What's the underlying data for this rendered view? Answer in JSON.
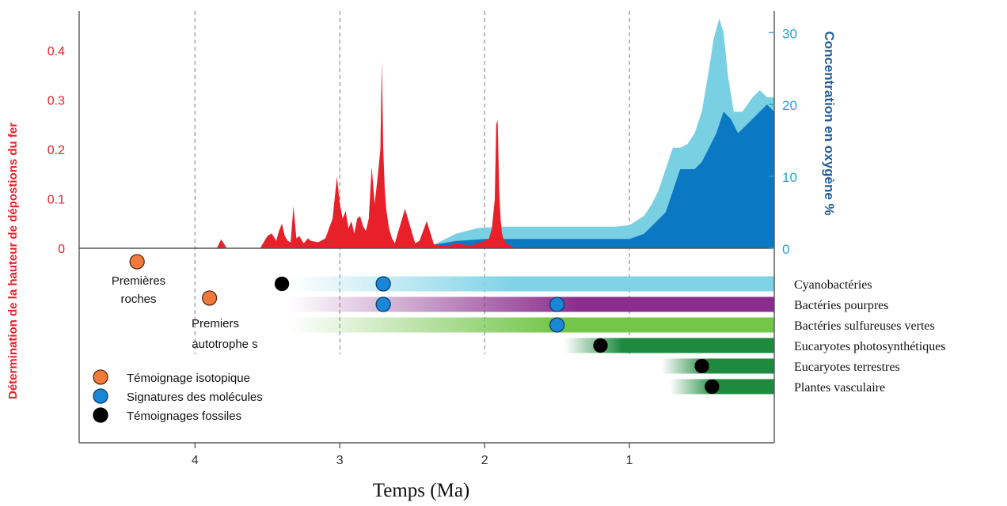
{
  "chart_data": {
    "type": "area",
    "xlabel": "Temps (Ma)",
    "ylabel_left": "Détermination de la hauteur de dépostions du fer",
    "ylabel_right": "Concentration en oxygène %",
    "xlim": [
      4.8,
      0
    ],
    "x_ticks": [
      "4",
      "3",
      "2",
      "1"
    ],
    "x_tick_values": [
      4,
      3,
      2,
      1
    ],
    "vgrid_dashed_at": [
      4,
      3,
      2,
      1
    ],
    "left_axis": {
      "ylim": [
        0,
        0.48
      ],
      "ticks": [
        "0",
        "0.1",
        "0.2",
        "0.3",
        "0.4"
      ],
      "tick_values": [
        0,
        0.1,
        0.2,
        0.3,
        0.4
      ],
      "color": "#e8202a"
    },
    "right_axis": {
      "ylim": [
        0,
        33
      ],
      "ticks": [
        "0",
        "10",
        "20",
        "30"
      ],
      "tick_values": [
        0,
        10,
        20,
        30
      ],
      "color": "#2a9fd6"
    },
    "series": [
      {
        "axis": "left",
        "color": "#e8202a",
        "x": [
          4.8,
          3.85,
          3.82,
          3.78,
          3.55,
          3.5,
          3.47,
          3.44,
          3.42,
          3.4,
          3.38,
          3.36,
          3.34,
          3.32,
          3.3,
          3.28,
          3.25,
          3.22,
          3.2,
          3.15,
          3.1,
          3.05,
          3.02,
          3.0,
          2.98,
          2.96,
          2.94,
          2.92,
          2.9,
          2.88,
          2.86,
          2.84,
          2.82,
          2.8,
          2.78,
          2.76,
          2.74,
          2.72,
          2.71,
          2.7,
          2.69,
          2.68,
          2.66,
          2.64,
          2.62,
          2.6,
          2.55,
          2.5,
          2.48,
          2.45,
          2.4,
          2.35,
          2.3,
          2.25,
          2.2,
          2.15,
          2.1,
          2.05,
          2.0,
          1.97,
          1.95,
          1.93,
          1.92,
          1.91,
          1.9,
          1.89,
          1.88,
          1.87,
          1.85,
          1.82,
          1.78,
          0
        ],
        "y": [
          0,
          0,
          0.018,
          0,
          0,
          0.025,
          0.03,
          0.015,
          0.035,
          0.05,
          0.025,
          0.015,
          0.012,
          0.085,
          0.02,
          0.025,
          0.01,
          0.02,
          0.015,
          0.012,
          0.02,
          0.06,
          0.145,
          0.09,
          0.06,
          0.075,
          0.04,
          0.055,
          0.03,
          0.06,
          0.065,
          0.045,
          0.035,
          0.06,
          0.165,
          0.09,
          0.14,
          0.2,
          0.38,
          0.2,
          0.12,
          0.08,
          0.04,
          0.02,
          0.01,
          0.03,
          0.08,
          0.03,
          0.01,
          0.015,
          0.055,
          0.008,
          0.005,
          0.005,
          0.01,
          0.008,
          0.005,
          0.01,
          0.015,
          0.02,
          0.04,
          0.1,
          0.25,
          0.26,
          0.12,
          0.06,
          0.03,
          0.02,
          0.01,
          0.005,
          0,
          0
        ]
      },
      {
        "axis": "right",
        "color": "#79d0e3",
        "x": [
          4.8,
          2.5,
          2.35,
          2.2,
          2.05,
          1.9,
          1.7,
          1.5,
          1.3,
          1.1,
          1.0,
          0.9,
          0.85,
          0.8,
          0.75,
          0.7,
          0.65,
          0.6,
          0.55,
          0.5,
          0.45,
          0.42,
          0.38,
          0.35,
          0.32,
          0.28,
          0.22,
          0.15,
          0.1,
          0.05,
          0
        ],
        "y": [
          0,
          0,
          0.5,
          2,
          2.8,
          3,
          3,
          3,
          3,
          3,
          3.2,
          4.5,
          6,
          8,
          11,
          14,
          14,
          14.5,
          16,
          19,
          25,
          29,
          32,
          30,
          24,
          19,
          19,
          21,
          22,
          21,
          21
        ]
      },
      {
        "axis": "right",
        "color": "#0b78c3",
        "x": [
          4.8,
          2.5,
          2.35,
          2.2,
          2.0,
          1.8,
          1.6,
          1.4,
          1.2,
          1.0,
          0.9,
          0.85,
          0.8,
          0.75,
          0.7,
          0.65,
          0.6,
          0.55,
          0.5,
          0.45,
          0.4,
          0.35,
          0.3,
          0.25,
          0.2,
          0.15,
          0.1,
          0.05,
          0
        ],
        "y": [
          0,
          0,
          0.5,
          1,
          1.3,
          1.3,
          1.3,
          1.3,
          1.3,
          1.3,
          2,
          3,
          4,
          5,
          8,
          11,
          11,
          11,
          12,
          14,
          16,
          19,
          18,
          16,
          17,
          18,
          19,
          20,
          19
        ]
      }
    ],
    "lineages": [
      {
        "label": "Cyanobactéries",
        "color": "#7fd3e6",
        "fade_start": 3.35,
        "solid_from": 1.8,
        "markers": [
          {
            "x": 3.4,
            "kind": "fossil"
          },
          {
            "x": 2.7,
            "kind": "molecular"
          }
        ]
      },
      {
        "label": "Bactéries pourpres",
        "color": "#8a2d8c",
        "fade_start": 3.35,
        "solid_from": 1.35,
        "markers": [
          {
            "x": 2.7,
            "kind": "molecular"
          },
          {
            "x": 1.5,
            "kind": "molecular"
          }
        ]
      },
      {
        "label": "Bactéries sulfureuses vertes",
        "color": "#72c64a",
        "fade_start": 3.35,
        "solid_from": 1.5,
        "markers": [
          {
            "x": 1.5,
            "kind": "molecular"
          }
        ]
      },
      {
        "label": "Eucaryotes photosynthétiques",
        "color": "#1d8a3d",
        "fade_start": 1.45,
        "solid_from": 1.05,
        "markers": [
          {
            "x": 1.2,
            "kind": "fossil"
          }
        ]
      },
      {
        "label": "Eucaryotes terrestres",
        "color": "#1d8a3d",
        "fade_start": 0.78,
        "solid_from": 0.45,
        "markers": [
          {
            "x": 0.5,
            "kind": "fossil"
          }
        ]
      },
      {
        "label": "Plantes vasculaire",
        "color": "#1d8a3d",
        "fade_start": 0.72,
        "solid_from": 0.4,
        "markers": [
          {
            "x": 0.43,
            "kind": "fossil"
          }
        ]
      }
    ],
    "isotopic_points": [
      {
        "x": 4.4,
        "label": "Premières roches"
      },
      {
        "x": 3.9,
        "label": "Premiers autotrophe s"
      }
    ],
    "first_rocks_label_lines": [
      "Premières",
      "roches"
    ],
    "first_autotrophs_label_lines": [
      "Premiers",
      "autotrophe s"
    ],
    "marker_colors": {
      "isotopic": "#f07a3a",
      "molecular": "#1a86d6",
      "fossil": "#000000"
    },
    "legend": {
      "placement": "bottom-left",
      "entries": [
        {
          "kind": "isotopic",
          "label": "Témoignage  isotopique"
        },
        {
          "kind": "molecular",
          "label": "Signatures des molécules"
        },
        {
          "kind": "fossil",
          "label": "Témoignages fossiles"
        }
      ]
    }
  }
}
